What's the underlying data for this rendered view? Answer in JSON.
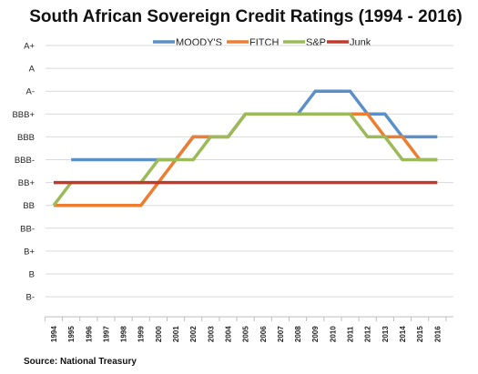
{
  "chart_data": {
    "type": "line",
    "title": "South African Sovereign Credit Ratings (1994 - 2016)",
    "source": "Source: National Treasury",
    "y_categories": [
      "A+",
      "A",
      "A-",
      "BBB+",
      "BBB",
      "BBB-",
      "BB+",
      "BB",
      "BB-",
      "B+",
      "B",
      "B-"
    ],
    "x": [
      "1994",
      "1995",
      "1996",
      "1997",
      "1998",
      "1999",
      "2000",
      "2001",
      "2002",
      "2003",
      "2004",
      "2005",
      "2006",
      "2007",
      "2008",
      "2009",
      "2010",
      "2011",
      "2012",
      "2013",
      "2014",
      "2015",
      "2016"
    ],
    "legend_position": "top",
    "grid": "horizontal",
    "series": [
      {
        "name": "MOODY'S",
        "color": "#5b8fc7",
        "values": [
          null,
          "BBB-",
          "BBB-",
          "BBB-",
          "BBB-",
          "BBB-",
          "BBB-",
          "BBB-",
          "BBB",
          "BBB",
          "BBB",
          "BBB+",
          "BBB+",
          "BBB+",
          "BBB+",
          "A-",
          "A-",
          "A-",
          "BBB+",
          "BBB+",
          "BBB",
          "BBB",
          "BBB"
        ]
      },
      {
        "name": "FITCH",
        "color": "#ed7d31",
        "values": [
          "BB",
          "BB",
          "BB",
          "BB",
          "BB",
          "BB",
          "BB+",
          "BBB-",
          "BBB",
          "BBB",
          "BBB",
          "BBB+",
          "BBB+",
          "BBB+",
          "BBB+",
          "BBB+",
          "BBB+",
          "BBB+",
          "BBB+",
          "BBB",
          "BBB",
          "BBB-",
          "BBB-"
        ]
      },
      {
        "name": "S&P",
        "color": "#9bbb59",
        "values": [
          "BB",
          "BB+",
          "BB+",
          "BB+",
          "BB+",
          "BB+",
          "BBB-",
          "BBB-",
          "BBB-",
          "BBB",
          "BBB",
          "BBB+",
          "BBB+",
          "BBB+",
          "BBB+",
          "BBB+",
          "BBB+",
          "BBB+",
          "BBB",
          "BBB",
          "BBB-",
          "BBB-",
          "BBB-"
        ]
      },
      {
        "name": "Junk",
        "color": "#c0392b",
        "values": [
          "BB+",
          "BB+",
          "BB+",
          "BB+",
          "BB+",
          "BB+",
          "BB+",
          "BB+",
          "BB+",
          "BB+",
          "BB+",
          "BB+",
          "BB+",
          "BB+",
          "BB+",
          "BB+",
          "BB+",
          "BB+",
          "BB+",
          "BB+",
          "BB+",
          "BB+",
          "BB+"
        ]
      }
    ]
  }
}
